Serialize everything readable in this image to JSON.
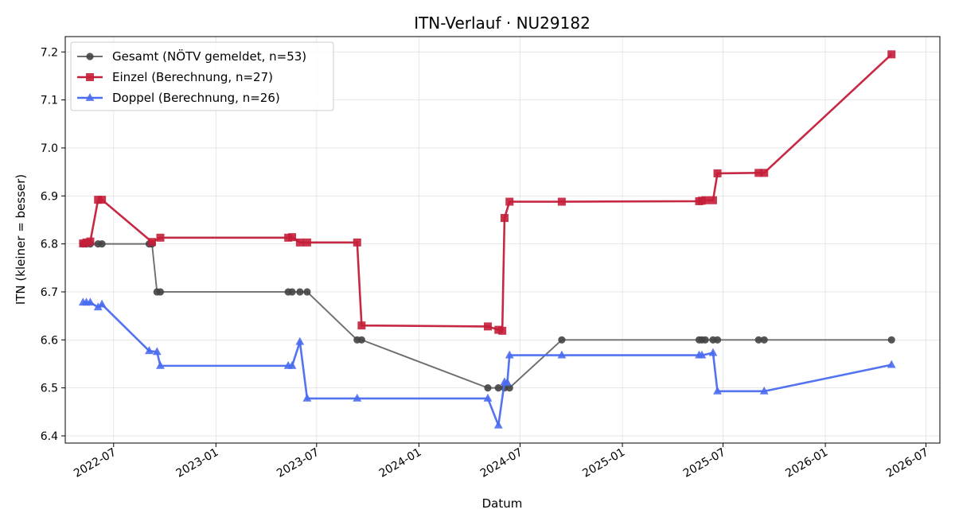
{
  "chart_data": {
    "type": "line",
    "title": "ITN-Verlauf · NU29182",
    "xlabel": "Datum",
    "ylabel": "ITN  (kleiner = besser)",
    "x_axis": "date",
    "xlim": [
      "2022-04-05",
      "2026-07-26"
    ],
    "ylim": [
      6.385,
      7.232
    ],
    "x_ticks": [
      "2022-07",
      "2023-01",
      "2023-07",
      "2024-01",
      "2024-07",
      "2025-01",
      "2025-07",
      "2026-01",
      "2026-07"
    ],
    "y_ticks": [
      "6.4",
      "6.5",
      "6.6",
      "6.7",
      "6.8",
      "6.9",
      "7.0",
      "7.1",
      "7.2"
    ],
    "grid": true,
    "legend_position": "top-left",
    "series": [
      {
        "name": "Gesamt (NÖTV gemeldet, n=53)",
        "color": "#6e6e6e",
        "marker_color": "#444444",
        "marker": "circle",
        "points": [
          {
            "x": "2022-05-07",
            "y": 6.8
          },
          {
            "x": "2022-05-13",
            "y": 6.8
          },
          {
            "x": "2022-05-20",
            "y": 6.8
          },
          {
            "x": "2022-06-03",
            "y": 6.8
          },
          {
            "x": "2022-06-10",
            "y": 6.8
          },
          {
            "x": "2022-09-03",
            "y": 6.8
          },
          {
            "x": "2022-09-08",
            "y": 6.8
          },
          {
            "x": "2022-09-17",
            "y": 6.7
          },
          {
            "x": "2022-09-23",
            "y": 6.7
          },
          {
            "x": "2023-05-11",
            "y": 6.7
          },
          {
            "x": "2023-05-18",
            "y": 6.7
          },
          {
            "x": "2023-06-01",
            "y": 6.7
          },
          {
            "x": "2023-06-14",
            "y": 6.7
          },
          {
            "x": "2023-09-12",
            "y": 6.6
          },
          {
            "x": "2023-09-20",
            "y": 6.6
          },
          {
            "x": "2024-05-04",
            "y": 6.5
          },
          {
            "x": "2024-05-23",
            "y": 6.5
          },
          {
            "x": "2024-06-03",
            "y": 6.5
          },
          {
            "x": "2024-06-12",
            "y": 6.5
          },
          {
            "x": "2024-09-14",
            "y": 6.6
          },
          {
            "x": "2025-05-19",
            "y": 6.6
          },
          {
            "x": "2025-05-24",
            "y": 6.6
          },
          {
            "x": "2025-05-30",
            "y": 6.6
          },
          {
            "x": "2025-06-13",
            "y": 6.6
          },
          {
            "x": "2025-06-21",
            "y": 6.6
          },
          {
            "x": "2025-09-03",
            "y": 6.6
          },
          {
            "x": "2025-09-13",
            "y": 6.6
          },
          {
            "x": "2026-04-30",
            "y": 6.6
          }
        ]
      },
      {
        "name": "Einzel (Berechnung, n=27)",
        "color": "#c41e3a",
        "marker": "square",
        "points": [
          {
            "x": "2022-05-07",
            "y": 6.801
          },
          {
            "x": "2022-05-13",
            "y": 6.803
          },
          {
            "x": "2022-05-20",
            "y": 6.805
          },
          {
            "x": "2022-06-03",
            "y": 6.892
          },
          {
            "x": "2022-06-10",
            "y": 6.892
          },
          {
            "x": "2022-09-08",
            "y": 6.804
          },
          {
            "x": "2022-09-23",
            "y": 6.813
          },
          {
            "x": "2023-05-11",
            "y": 6.813
          },
          {
            "x": "2023-05-18",
            "y": 6.814
          },
          {
            "x": "2023-06-01",
            "y": 6.803
          },
          {
            "x": "2023-06-14",
            "y": 6.803
          },
          {
            "x": "2023-09-12",
            "y": 6.803
          },
          {
            "x": "2023-09-20",
            "y": 6.63
          },
          {
            "x": "2024-05-04",
            "y": 6.628
          },
          {
            "x": "2024-05-23",
            "y": 6.621
          },
          {
            "x": "2024-05-30",
            "y": 6.619
          },
          {
            "x": "2024-06-03",
            "y": 6.854
          },
          {
            "x": "2024-06-12",
            "y": 6.888
          },
          {
            "x": "2024-09-14",
            "y": 6.888
          },
          {
            "x": "2025-05-19",
            "y": 6.889
          },
          {
            "x": "2025-05-24",
            "y": 6.89
          },
          {
            "x": "2025-05-30",
            "y": 6.891
          },
          {
            "x": "2025-06-13",
            "y": 6.891
          },
          {
            "x": "2025-06-21",
            "y": 6.947
          },
          {
            "x": "2025-09-03",
            "y": 6.948
          },
          {
            "x": "2025-09-13",
            "y": 6.948
          },
          {
            "x": "2026-04-30",
            "y": 7.195
          }
        ]
      },
      {
        "name": "Doppel (Berechnung, n=26)",
        "color": "#4a6cf0",
        "marker": "triangle",
        "points": [
          {
            "x": "2022-05-07",
            "y": 6.678
          },
          {
            "x": "2022-05-13",
            "y": 6.678
          },
          {
            "x": "2022-05-20",
            "y": 6.678
          },
          {
            "x": "2022-06-03",
            "y": 6.668
          },
          {
            "x": "2022-06-10",
            "y": 6.674
          },
          {
            "x": "2022-09-03",
            "y": 6.577
          },
          {
            "x": "2022-09-17",
            "y": 6.575
          },
          {
            "x": "2022-09-23",
            "y": 6.546
          },
          {
            "x": "2023-05-11",
            "y": 6.546
          },
          {
            "x": "2023-05-18",
            "y": 6.546
          },
          {
            "x": "2023-06-01",
            "y": 6.596
          },
          {
            "x": "2023-06-14",
            "y": 6.478
          },
          {
            "x": "2023-09-12",
            "y": 6.478
          },
          {
            "x": "2024-05-04",
            "y": 6.478
          },
          {
            "x": "2024-05-23",
            "y": 6.422
          },
          {
            "x": "2024-06-03",
            "y": 6.512
          },
          {
            "x": "2024-06-08",
            "y": 6.511
          },
          {
            "x": "2024-06-12",
            "y": 6.568
          },
          {
            "x": "2024-09-14",
            "y": 6.568
          },
          {
            "x": "2025-05-19",
            "y": 6.568
          },
          {
            "x": "2025-05-24",
            "y": 6.568
          },
          {
            "x": "2025-06-13",
            "y": 6.573
          },
          {
            "x": "2025-06-21",
            "y": 6.493
          },
          {
            "x": "2025-09-13",
            "y": 6.493
          },
          {
            "x": "2026-04-30",
            "y": 6.548
          }
        ]
      }
    ]
  }
}
